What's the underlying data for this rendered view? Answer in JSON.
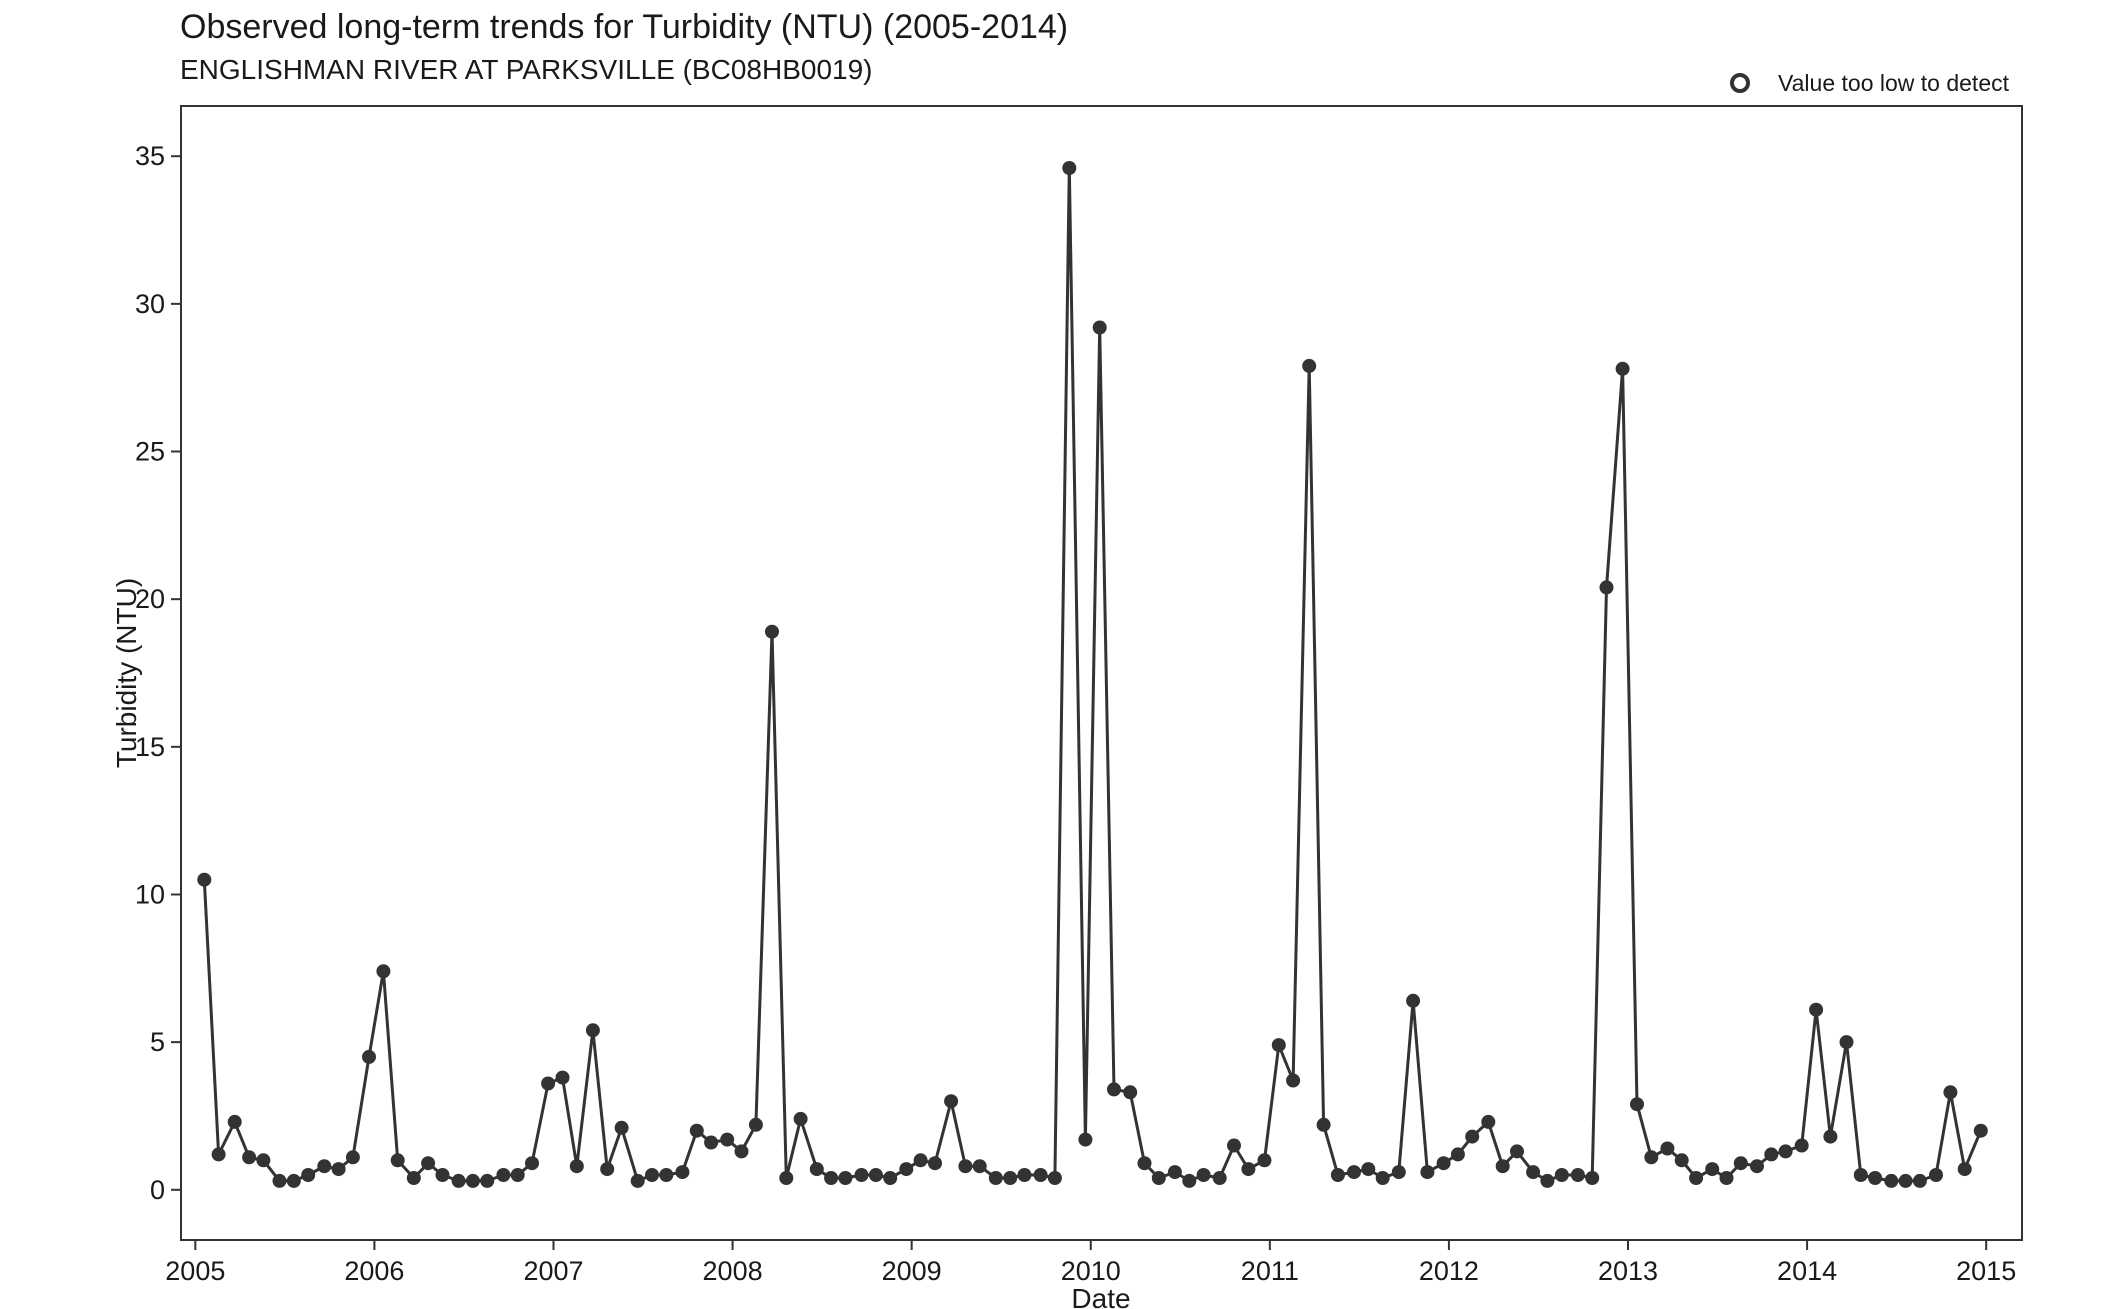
{
  "chart_data": {
    "type": "line",
    "title": "Observed long-term trends for Turbidity (NTU) (2005-2014)",
    "subtitle": "ENGLISHMAN RIVER AT PARKSVILLE (BC08HB0019)",
    "xlabel": "Date",
    "ylabel": "Turbidity (NTU)",
    "xlim": [
      2004.92,
      2015.2
    ],
    "ylim": [
      -1.7,
      36.7
    ],
    "x_ticks": [
      2005,
      2006,
      2007,
      2008,
      2009,
      2010,
      2011,
      2012,
      2013,
      2014,
      2015
    ],
    "x_tick_labels": [
      "2005",
      "2006",
      "2007",
      "2008",
      "2009",
      "2010",
      "2011",
      "2012",
      "2013",
      "2014",
      "2015"
    ],
    "y_ticks": [
      0,
      5,
      10,
      15,
      20,
      25,
      30,
      35
    ],
    "y_tick_labels": [
      "0",
      "5",
      "10",
      "15",
      "20",
      "25",
      "30",
      "35"
    ],
    "grid": false,
    "legend": {
      "placement": "top-right",
      "entries": [
        {
          "label": "Value too low to detect",
          "marker": "open-circle"
        }
      ]
    },
    "colors": {
      "line": "#333333",
      "point": "#333333"
    },
    "series": [
      {
        "x": [
          2005.05,
          2005.13,
          2005.22,
          2005.3,
          2005.38,
          2005.47,
          2005.55,
          2005.63,
          2005.72,
          2005.8,
          2005.88,
          2005.97,
          2006.05,
          2006.13,
          2006.22,
          2006.3,
          2006.38,
          2006.47,
          2006.55,
          2006.63,
          2006.72,
          2006.8,
          2006.88,
          2006.97,
          2007.05,
          2007.13,
          2007.22,
          2007.3,
          2007.38,
          2007.47,
          2007.55,
          2007.63,
          2007.72,
          2007.8,
          2007.88,
          2007.97,
          2008.05,
          2008.13,
          2008.22,
          2008.3,
          2008.38,
          2008.47,
          2008.55,
          2008.63,
          2008.72,
          2008.8,
          2008.88,
          2008.97,
          2009.05,
          2009.13,
          2009.22,
          2009.3,
          2009.38,
          2009.47,
          2009.55,
          2009.63,
          2009.72,
          2009.8,
          2009.88,
          2009.97,
          2010.05,
          2010.13,
          2010.22,
          2010.3,
          2010.38,
          2010.47,
          2010.55,
          2010.63,
          2010.72,
          2010.8,
          2010.88,
          2010.97,
          2011.05,
          2011.13,
          2011.22,
          2011.3,
          2011.38,
          2011.47,
          2011.55,
          2011.63,
          2011.72,
          2011.8,
          2011.88,
          2011.97,
          2012.05,
          2012.13,
          2012.22,
          2012.3,
          2012.38,
          2012.47,
          2012.55,
          2012.63,
          2012.72,
          2012.8,
          2012.88,
          2012.97,
          2013.05,
          2013.13,
          2013.22,
          2013.3,
          2013.38,
          2013.47,
          2013.55,
          2013.63,
          2013.72,
          2013.8,
          2013.88,
          2013.97,
          2014.05,
          2014.13,
          2014.22,
          2014.3,
          2014.38,
          2014.47,
          2014.55,
          2014.63,
          2014.72,
          2014.8,
          2014.88,
          2014.97
        ],
        "y": [
          10.5,
          1.2,
          2.3,
          1.1,
          1.0,
          0.3,
          0.3,
          0.5,
          0.8,
          0.7,
          1.1,
          4.5,
          7.4,
          1.0,
          0.4,
          0.9,
          0.5,
          0.3,
          0.3,
          0.3,
          0.5,
          0.5,
          0.9,
          3.6,
          3.8,
          0.8,
          5.4,
          0.7,
          2.1,
          0.3,
          0.5,
          0.5,
          0.6,
          2.0,
          1.6,
          1.7,
          1.3,
          2.2,
          18.9,
          0.4,
          2.4,
          0.7,
          0.4,
          0.4,
          0.5,
          0.5,
          0.4,
          0.7,
          1.0,
          0.9,
          3.0,
          0.8,
          0.8,
          0.4,
          0.4,
          0.5,
          0.5,
          0.4,
          34.6,
          1.7,
          29.2,
          3.4,
          3.3,
          0.9,
          0.4,
          0.6,
          0.3,
          0.5,
          0.4,
          1.5,
          0.7,
          1.0,
          4.9,
          3.7,
          27.9,
          2.2,
          0.5,
          0.6,
          0.7,
          0.4,
          0.6,
          6.4,
          0.6,
          0.9,
          1.2,
          1.8,
          2.3,
          0.8,
          1.3,
          0.6,
          0.3,
          0.5,
          0.5,
          0.4,
          20.4,
          27.8,
          2.9,
          1.1,
          1.4,
          1.0,
          0.4,
          0.7,
          0.4,
          0.9,
          0.8,
          1.2,
          1.3,
          1.5,
          6.1,
          1.8,
          5.0,
          0.5,
          0.4,
          0.3,
          0.3,
          0.3,
          0.5,
          3.3,
          0.7,
          2.0
        ]
      }
    ]
  }
}
